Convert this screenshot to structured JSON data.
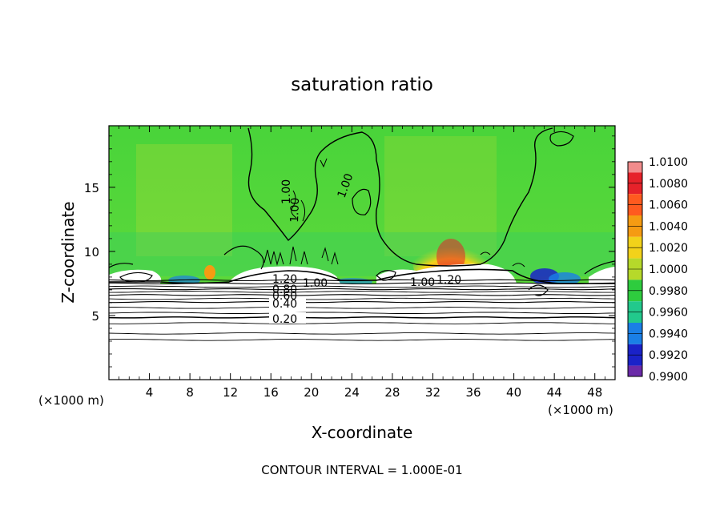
{
  "chart_data": {
    "type": "heatmap",
    "title": "saturation ratio",
    "xlabel": "X-coordinate",
    "ylabel": "Z-coordinate",
    "x_unit_left": "(×1000 m)",
    "x_unit_right": "(×1000 m)",
    "xlim": [
      0,
      50
    ],
    "ylim": [
      0,
      19.8
    ],
    "x_ticks": [
      4,
      8,
      12,
      16,
      20,
      24,
      28,
      32,
      36,
      40,
      44,
      48
    ],
    "y_ticks": [
      5,
      10,
      15
    ],
    "footer": "CONTOUR INTERVAL = 1.000E-01",
    "colorbar": {
      "levels": [
        "1.0100",
        "1.0080",
        "1.0060",
        "1.0040",
        "1.0020",
        "1.0000",
        "0.9980",
        "0.9960",
        "0.9940",
        "0.9920",
        "0.9900"
      ],
      "bands": [
        "#f28c8c",
        "#e6222a",
        "#ff5a1f",
        "#f59b12",
        "#f2d21a",
        "#b6d92a",
        "#2ecc3e",
        "#22c98c",
        "#1a7fe6",
        "#1a22c8",
        "#6a2aa8"
      ]
    },
    "contours": [
      {
        "level": "0.20",
        "z": 4.85
      },
      {
        "level": "0.40",
        "z": 6.05
      },
      {
        "level": "0.60",
        "z": 6.6
      },
      {
        "level": "0.80",
        "z": 7.05
      },
      {
        "level": "1.00",
        "z": 7.5
      },
      {
        "level": "1.20",
        "z": 7.75
      }
    ],
    "extra_contours": [
      3.1,
      3.6,
      4.4,
      5.2,
      5.6,
      6.3,
      6.85,
      7.25
    ],
    "upper_contour_labels": [
      "1.00",
      "1.00",
      "1.00",
      "1.00",
      "1.20",
      "1.00",
      "1.20"
    ]
  }
}
